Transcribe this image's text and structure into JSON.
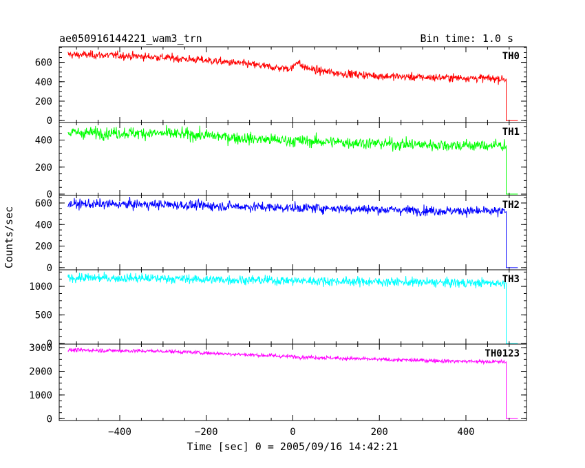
{
  "chart_data": {
    "type": "line",
    "title": "ae050916144221_wam3_trn",
    "bin_time_label": "Bin time: 1.0 s",
    "xlabel": "Time [sec] 0 = 2005/09/16 14:42:21",
    "ylabel": "Counts/sec",
    "xlim": [
      -540,
      540
    ],
    "x_ticks": [
      -400,
      -200,
      0,
      200,
      400
    ],
    "x_tick_labels": [
      "−400",
      "−200",
      "0",
      "200",
      "400"
    ],
    "x_start": -520,
    "x_end": 490,
    "x_cutoff": 493,
    "x_after_end": 520,
    "panels": [
      {
        "name": "TH0",
        "color": "#ff0000",
        "ylim": [
          -20,
          760
        ],
        "yticks": [
          0,
          200,
          400,
          600
        ],
        "ytick_labels": [
          "0",
          "200",
          "400",
          "600"
        ],
        "noise": 20,
        "trend_x": [
          -520,
          -400,
          -300,
          -200,
          -100,
          -30,
          0,
          10,
          20,
          50,
          100,
          200,
          300,
          400,
          490
        ],
        "trend_y": [
          680,
          670,
          650,
          620,
          580,
          540,
          540,
          620,
          560,
          520,
          490,
          460,
          445,
          440,
          430
        ]
      },
      {
        "name": "TH1",
        "color": "#00ff00",
        "ylim": [
          -10,
          530
        ],
        "yticks": [
          0,
          200,
          400
        ],
        "ytick_labels": [
          "0",
          "200",
          "400"
        ],
        "noise": 22,
        "trend_x": [
          -520,
          -300,
          -200,
          -100,
          0,
          100,
          200,
          300,
          400,
          490
        ],
        "trend_y": [
          455,
          450,
          435,
          410,
          395,
          385,
          375,
          365,
          360,
          360
        ]
      },
      {
        "name": "TH2",
        "color": "#0000ff",
        "ylim": [
          -20,
          670
        ],
        "yticks": [
          0,
          200,
          400,
          600
        ],
        "ytick_labels": [
          "0",
          "200",
          "400",
          "600"
        ],
        "noise": 22,
        "trend_x": [
          -520,
          -300,
          -200,
          -100,
          0,
          100,
          200,
          300,
          400,
          490
        ],
        "trend_y": [
          590,
          585,
          575,
          565,
          555,
          550,
          540,
          530,
          525,
          520
        ]
      },
      {
        "name": "TH3",
        "color": "#00ffff",
        "ylim": [
          -10,
          1290
        ],
        "yticks": [
          0,
          500,
          1000
        ],
        "ytick_labels": [
          "0",
          "500",
          "1000"
        ],
        "noise": 40,
        "trend_x": [
          -520,
          -300,
          -200,
          -100,
          0,
          100,
          200,
          300,
          400,
          490
        ],
        "trend_y": [
          1150,
          1140,
          1120,
          1110,
          1100,
          1090,
          1080,
          1070,
          1060,
          1060
        ]
      },
      {
        "name": "TH0123",
        "color": "#ff00ff",
        "ylim": [
          -80,
          3150
        ],
        "yticks": [
          0,
          1000,
          2000,
          3000
        ],
        "ytick_labels": [
          "0",
          "1000",
          "2000",
          "3000"
        ],
        "noise": 40,
        "trend_x": [
          -520,
          -300,
          -200,
          -100,
          0,
          100,
          200,
          300,
          400,
          490
        ],
        "trend_y": [
          2900,
          2850,
          2780,
          2700,
          2620,
          2560,
          2500,
          2460,
          2420,
          2400
        ]
      }
    ]
  }
}
